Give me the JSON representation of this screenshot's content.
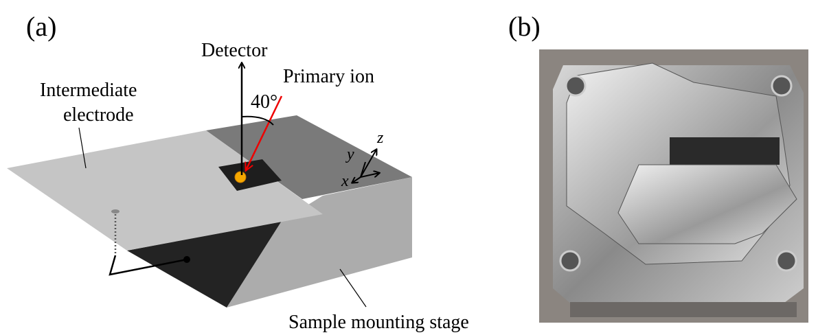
{
  "panel_a": {
    "label": "(a)",
    "detector": "Detector",
    "primary_ion": "Primary ion",
    "angle": "40°",
    "electrode_line1": "Intermediate",
    "electrode_line2": "electrode",
    "axis_x": "x",
    "axis_y": "y",
    "axis_z": "z",
    "stage": "Sample mounting stage"
  },
  "panel_b": {
    "label": "(b)"
  }
}
